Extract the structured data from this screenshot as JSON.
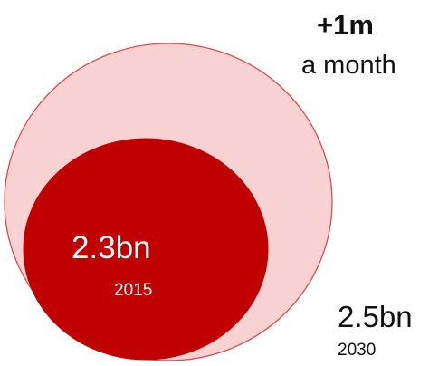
{
  "chart_data": {
    "type": "bubble",
    "title": "",
    "annotation": {
      "value": "+1m",
      "unit": "a month"
    },
    "series": [
      {
        "value_label": "2.5bn",
        "year": "2030",
        "value": 2.5,
        "color": "#f8d2d2",
        "stroke": "#d94d4d"
      },
      {
        "value_label": "2.3bn",
        "year": "2015",
        "value": 2.3,
        "color": "#c00000",
        "stroke": "#c00000"
      }
    ]
  }
}
